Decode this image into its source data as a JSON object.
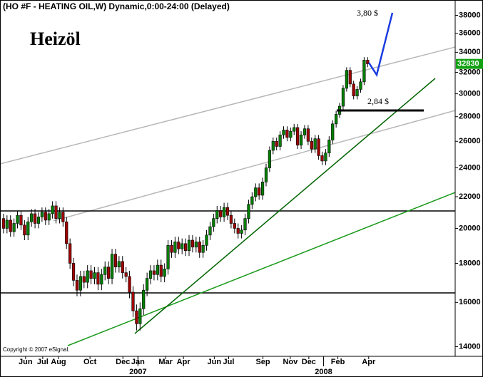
{
  "chart_data": {
    "type": "candlestick",
    "header": "(HO #F - HEATING OIL,W) Dynamic,0:00-24:00 (Delayed)",
    "title": "Heizöl",
    "annotations": [
      "3,80 $",
      "2,84 $"
    ],
    "copyright": "Copyright © 2007 eSignal.",
    "last_price": 32830,
    "log_scale": true,
    "up_color": "#008000",
    "down_color": "#a00000",
    "ylim": [
      13600,
      39800
    ],
    "yticks": [
      14000,
      16000,
      18000,
      20000,
      22000,
      24000,
      26000,
      28000,
      30000,
      32000,
      34000,
      36000,
      38000
    ],
    "xlim": [
      -1,
      129
    ],
    "xticks": [
      {
        "value": 6.3,
        "label": "Jun"
      },
      {
        "value": 11.2,
        "label": "Jul"
      },
      {
        "value": 15.7,
        "label": "Aug"
      },
      {
        "value": 24.7,
        "label": "Oct"
      },
      {
        "value": 34.1,
        "label": "Dec"
      },
      {
        "value": 38.4,
        "label": "Jan"
      },
      {
        "value": 46.3,
        "label": "Mar"
      },
      {
        "value": 51.4,
        "label": "Apr"
      },
      {
        "value": 60.2,
        "label": "Jun"
      },
      {
        "value": 64.3,
        "label": "Jul"
      },
      {
        "value": 74.1,
        "label": "Sep"
      },
      {
        "value": 81.9,
        "label": "Nov"
      },
      {
        "value": 87.2,
        "label": "Dec"
      },
      {
        "value": 95.5,
        "label": "Feb"
      },
      {
        "value": 104.3,
        "label": "Apr"
      }
    ],
    "year_ticks": [
      {
        "value": 38.4,
        "label": "2007"
      },
      {
        "value": 91.4,
        "label": "2008"
      }
    ],
    "ohlc": [
      [
        20600,
        20900,
        19700,
        20000
      ],
      [
        20000,
        20800,
        19700,
        20500
      ],
      [
        20500,
        20800,
        19500,
        19800
      ],
      [
        19800,
        20600,
        19500,
        20300
      ],
      [
        20300,
        21100,
        20000,
        20800
      ],
      [
        20800,
        21100,
        19900,
        20200
      ],
      [
        20200,
        20500,
        19300,
        19600
      ],
      [
        19600,
        20700,
        19300,
        20400
      ],
      [
        20400,
        21200,
        20100,
        20900
      ],
      [
        20900,
        21200,
        20000,
        20300
      ],
      [
        20300,
        21000,
        20000,
        20700
      ],
      [
        20700,
        21300,
        20400,
        21000
      ],
      [
        21000,
        21300,
        20200,
        20500
      ],
      [
        20500,
        21200,
        20200,
        20900
      ],
      [
        20900,
        21700,
        20600,
        21400
      ],
      [
        21400,
        21700,
        20300,
        20600
      ],
      [
        20600,
        21300,
        20300,
        21000
      ],
      [
        21000,
        21300,
        20100,
        20400
      ],
      [
        20400,
        20700,
        18800,
        19100
      ],
      [
        19100,
        19400,
        17700,
        18000
      ],
      [
        18000,
        18300,
        16800,
        17100
      ],
      [
        17100,
        17400,
        16300,
        16600
      ],
      [
        16600,
        17600,
        16300,
        17300
      ],
      [
        17300,
        17600,
        16700,
        17000
      ],
      [
        17000,
        17900,
        16700,
        17600
      ],
      [
        17600,
        17900,
        16900,
        17200
      ],
      [
        17200,
        17800,
        16900,
        17500
      ],
      [
        17500,
        17800,
        16600,
        16900
      ],
      [
        16900,
        17700,
        16600,
        17400
      ],
      [
        17400,
        18100,
        17100,
        17800
      ],
      [
        17800,
        18100,
        16900,
        17200
      ],
      [
        17200,
        18800,
        16900,
        18500
      ],
      [
        18500,
        18800,
        17500,
        17800
      ],
      [
        17800,
        18400,
        17500,
        18100
      ],
      [
        18100,
        18400,
        17200,
        17500
      ],
      [
        17500,
        17800,
        17000,
        17300
      ],
      [
        17300,
        17600,
        16200,
        16500
      ],
      [
        16500,
        16800,
        15300,
        15600
      ],
      [
        15600,
        15900,
        14700,
        15000
      ],
      [
        15000,
        16000,
        14700,
        15700
      ],
      [
        15700,
        16900,
        15400,
        16600
      ],
      [
        16600,
        17500,
        16300,
        17200
      ],
      [
        17200,
        17900,
        16900,
        17600
      ],
      [
        17600,
        17900,
        17100,
        17400
      ],
      [
        17400,
        18200,
        17100,
        17900
      ],
      [
        17900,
        18200,
        17000,
        17300
      ],
      [
        17300,
        18000,
        17000,
        17700
      ],
      [
        17700,
        19300,
        17400,
        19000
      ],
      [
        19000,
        19300,
        18300,
        18600
      ],
      [
        18600,
        19500,
        18300,
        19200
      ],
      [
        19200,
        19500,
        18500,
        18800
      ],
      [
        18800,
        19400,
        18500,
        19100
      ],
      [
        19100,
        19400,
        18400,
        18700
      ],
      [
        18700,
        19600,
        18400,
        19300
      ],
      [
        19300,
        19600,
        18600,
        18900
      ],
      [
        18900,
        19500,
        18600,
        19200
      ],
      [
        19200,
        19500,
        18300,
        18600
      ],
      [
        18600,
        19300,
        18300,
        19000
      ],
      [
        19000,
        19900,
        18700,
        19600
      ],
      [
        19600,
        20400,
        19300,
        20100
      ],
      [
        20100,
        20900,
        19800,
        20600
      ],
      [
        20600,
        21400,
        20300,
        21100
      ],
      [
        21100,
        21400,
        20400,
        20700
      ],
      [
        20700,
        21600,
        20400,
        21300
      ],
      [
        21300,
        21600,
        20500,
        20800
      ],
      [
        20800,
        21100,
        20000,
        20300
      ],
      [
        20300,
        20600,
        19700,
        20000
      ],
      [
        20000,
        20300,
        19400,
        19700
      ],
      [
        19700,
        20200,
        19400,
        19900
      ],
      [
        19900,
        20900,
        19600,
        20600
      ],
      [
        20600,
        21800,
        20300,
        21500
      ],
      [
        21500,
        22300,
        21200,
        22000
      ],
      [
        22000,
        22900,
        21700,
        22600
      ],
      [
        22600,
        22900,
        21800,
        22100
      ],
      [
        22100,
        23300,
        21800,
        23000
      ],
      [
        23000,
        24300,
        22700,
        24000
      ],
      [
        24000,
        25600,
        23700,
        25300
      ],
      [
        25300,
        26300,
        25000,
        26000
      ],
      [
        26000,
        26300,
        25300,
        25600
      ],
      [
        25600,
        26800,
        25300,
        26500
      ],
      [
        26500,
        27200,
        26200,
        26900
      ],
      [
        26900,
        27200,
        26000,
        26300
      ],
      [
        26300,
        27100,
        26000,
        26800
      ],
      [
        26800,
        27400,
        26500,
        27100
      ],
      [
        27100,
        27400,
        25400,
        25700
      ],
      [
        25700,
        26800,
        25400,
        26500
      ],
      [
        26500,
        27300,
        26200,
        27000
      ],
      [
        27000,
        27300,
        25700,
        26000
      ],
      [
        26000,
        26300,
        25100,
        25400
      ],
      [
        25400,
        26500,
        25100,
        26200
      ],
      [
        26200,
        26500,
        24600,
        24900
      ],
      [
        24900,
        25200,
        24200,
        24500
      ],
      [
        24500,
        25400,
        24200,
        25100
      ],
      [
        25100,
        26400,
        24800,
        26100
      ],
      [
        26100,
        27700,
        25800,
        27400
      ],
      [
        27400,
        28500,
        27100,
        28200
      ],
      [
        28200,
        29200,
        27900,
        28900
      ],
      [
        28900,
        30800,
        28600,
        30500
      ],
      [
        30500,
        32500,
        30200,
        32200
      ],
      [
        32200,
        32500,
        30600,
        30900
      ],
      [
        30900,
        31200,
        29500,
        29800
      ],
      [
        29800,
        30700,
        29500,
        30400
      ],
      [
        30400,
        31400,
        30100,
        31100
      ],
      [
        31100,
        33500,
        30800,
        33200
      ],
      [
        33200,
        33500,
        32500,
        32830
      ]
    ]
  }
}
